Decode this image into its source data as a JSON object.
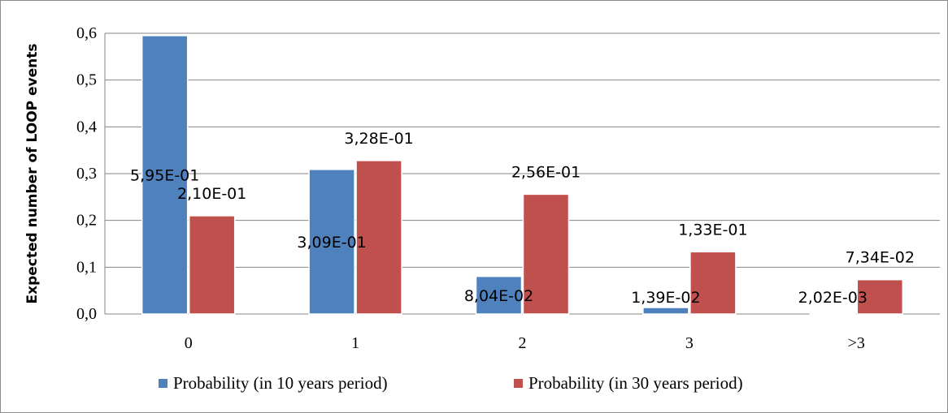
{
  "chart_data": {
    "type": "bar",
    "categories": [
      "0",
      "1",
      "2",
      "3",
      ">3"
    ],
    "series": [
      {
        "name": "Probability (in 10 years period)",
        "color": "#4f81bd",
        "values": [
          0.595,
          0.309,
          0.0804,
          0.0139,
          0.00202
        ],
        "labels": [
          "5,95E-01",
          "3,09E-01",
          "8,04E-02",
          "1,39E-02",
          "2,02E-03"
        ]
      },
      {
        "name": "Probability (in 30 years period)",
        "color": "#c0504d",
        "values": [
          0.21,
          0.328,
          0.256,
          0.133,
          0.0734
        ],
        "labels": [
          "2,10E-01",
          "3,28E-01",
          "2,56E-01",
          "1,33E-01",
          "7,34E-02"
        ]
      }
    ],
    "yticks": [
      "0,0",
      "0,1",
      "0,2",
      "0,3",
      "0,4",
      "0,5",
      "0,6"
    ],
    "ylim": [
      0,
      0.6
    ],
    "ylabel": "Expected number of LOOP events",
    "xlabel": "",
    "title": "",
    "grid": true,
    "legend_position": "bottom"
  }
}
